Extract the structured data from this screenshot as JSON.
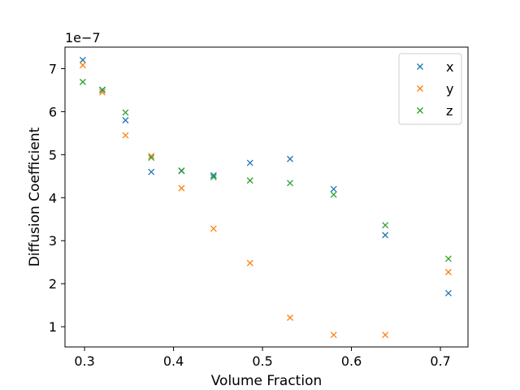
{
  "chart_data": {
    "type": "scatter",
    "title": "",
    "xlabel": "Volume Fraction",
    "ylabel": "Diffusion Coefficient",
    "y_scale_label": "1e−7",
    "xlim": [
      0.278,
      0.731
    ],
    "ylim": [
      0.53,
      7.5
    ],
    "xticks": [
      0.3,
      0.4,
      0.5,
      0.6,
      0.7
    ],
    "xtick_labels": [
      "0.3",
      "0.4",
      "0.5",
      "0.6",
      "0.7"
    ],
    "yticks": [
      1,
      2,
      3,
      4,
      5,
      6,
      7
    ],
    "ytick_labels": [
      "1",
      "2",
      "3",
      "4",
      "5",
      "6",
      "7"
    ],
    "grid": false,
    "legend_position": "top-right",
    "marker": "x",
    "x": [
      0.298,
      0.32,
      0.346,
      0.375,
      0.409,
      0.445,
      0.486,
      0.531,
      0.58,
      0.638,
      0.709
    ],
    "series": [
      {
        "name": "x",
        "color": "#1f77b4",
        "values": [
          7.2,
          6.5,
          5.8,
          4.6,
          4.62,
          4.52,
          4.81,
          4.9,
          4.2,
          3.13,
          1.78
        ]
      },
      {
        "name": "y",
        "color": "#ff7f0e",
        "values": [
          7.08,
          6.45,
          5.45,
          4.97,
          4.22,
          3.28,
          2.48,
          1.21,
          0.81,
          0.81,
          2.27
        ]
      },
      {
        "name": "z",
        "color": "#2ca02c",
        "values": [
          6.69,
          6.51,
          5.98,
          4.93,
          4.63,
          4.48,
          4.4,
          4.34,
          4.07,
          3.36,
          2.58
        ]
      }
    ]
  }
}
